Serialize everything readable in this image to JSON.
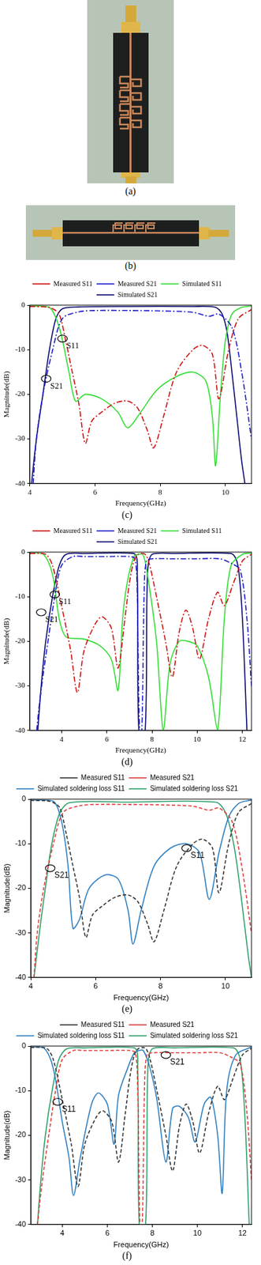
{
  "photos": [
    {
      "caption": "(a)"
    },
    {
      "caption": "(b)"
    }
  ],
  "chart_data": [
    {
      "type": "line",
      "title": "(c)",
      "x_label": "Frequency(GHz)",
      "y_label": "Magnitude(dB)",
      "xlim": [
        4,
        10.8
      ],
      "xticks": [
        4,
        6,
        8,
        10
      ],
      "ylim": [
        -40,
        0
      ],
      "yticks": [
        -40,
        -30,
        -20,
        -10,
        0
      ],
      "grid": false,
      "legend": "top",
      "annotations": [
        {
          "text": "S11",
          "x": 5.0,
          "y": -7.5
        },
        {
          "text": "S21",
          "x": 4.5,
          "y": -16.5
        }
      ],
      "series": [
        {
          "name": "Measured S11",
          "color": "#cc1111",
          "line_style": "dashdot",
          "x": [
            4,
            4.5,
            4.7,
            4.9,
            5.1,
            5.3,
            5.5,
            5.7,
            5.9,
            6.2,
            6.6,
            7.0,
            7.3,
            7.6,
            7.8,
            8.1,
            8.5,
            9.0,
            9.3,
            9.6,
            9.8,
            10.1,
            10.4,
            10.8
          ],
          "values": [
            -0.3,
            -0.4,
            -0.8,
            -2,
            -8,
            -15,
            -22,
            -31,
            -26,
            -24,
            -22,
            -21.5,
            -23,
            -28,
            -32,
            -25,
            -15,
            -10,
            -9,
            -11,
            -21,
            -10,
            -3,
            -1
          ]
        },
        {
          "name": "Measured S21",
          "color": "#1a1acc",
          "line_style": "dashdot",
          "x": [
            4.1,
            4.2,
            4.4,
            4.7,
            5.0,
            5.5,
            6,
            7,
            8,
            9,
            9.5,
            9.8,
            10.2,
            10.5,
            10.8
          ],
          "values": [
            -40,
            -30,
            -20,
            -10,
            -3,
            -1.5,
            -1.2,
            -1.2,
            -1.3,
            -1.6,
            -2.5,
            -2,
            -5,
            -15,
            -30
          ]
        },
        {
          "name": "Simulated S11",
          "color": "#33dd33",
          "line_style": "solid",
          "x": [
            4,
            4.6,
            4.9,
            5.2,
            5.4,
            5.7,
            6.2,
            6.7,
            7.0,
            7.4,
            7.9,
            8.5,
            9.0,
            9.4,
            9.6,
            9.7,
            9.85,
            10.0,
            10.2,
            10.5,
            10.8
          ],
          "values": [
            -0.2,
            -0.5,
            -5,
            -15,
            -21.5,
            -20,
            -21,
            -24,
            -27.5,
            -24,
            -19,
            -16,
            -15,
            -17,
            -25,
            -36,
            -20,
            -8,
            -2,
            -0.5,
            -0.2
          ]
        },
        {
          "name": "Simulated S21",
          "color": "#0a0a70",
          "line_style": "solid",
          "x": [
            4.05,
            4.2,
            4.4,
            4.6,
            4.8,
            5.0,
            5.5,
            7,
            9,
            9.7,
            9.9,
            10.05,
            10.2,
            10.35,
            10.5,
            10.6
          ],
          "values": [
            -40,
            -30,
            -20,
            -10,
            -3,
            -0.8,
            -0.4,
            -0.3,
            -0.3,
            -0.5,
            -2,
            -6,
            -15,
            -25,
            -35,
            -40
          ]
        }
      ]
    },
    {
      "type": "line",
      "title": "(d)",
      "x_label": "Frequency(GHz)",
      "y_label": "Magnitude(dB)",
      "xlim": [
        2.6,
        12.4
      ],
      "xticks": [
        4,
        6,
        8,
        10,
        12
      ],
      "ylim": [
        -40,
        0
      ],
      "yticks": [
        -40,
        -30,
        -20,
        -10,
        0
      ],
      "grid": false,
      "legend": "top",
      "annotations": [
        {
          "text": "S11",
          "x": 3.7,
          "y": -9.5
        },
        {
          "text": "S21",
          "x": 3.1,
          "y": -13.5
        }
      ],
      "series": [
        {
          "name": "Measured S11",
          "color": "#cc1111",
          "line_style": "dashdot",
          "x": [
            2.6,
            3.3,
            3.6,
            4.0,
            4.4,
            4.7,
            5.0,
            5.5,
            5.8,
            6.2,
            6.5,
            6.8,
            7.0,
            7.2,
            7.4,
            7.7,
            7.9,
            8.2,
            8.6,
            8.9,
            9.2,
            9.5,
            9.8,
            10.1,
            10.5,
            10.9,
            11.2,
            11.6,
            12.0,
            12.4
          ],
          "values": [
            -0.3,
            -0.5,
            -3,
            -12,
            -22,
            -31.5,
            -22,
            -16,
            -14.5,
            -17,
            -26,
            -15,
            -7,
            -2,
            -0.5,
            -0.5,
            -3,
            -10,
            -20,
            -28,
            -18,
            -13,
            -17,
            -24,
            -15,
            -9,
            -12,
            -7,
            -2,
            -0.5
          ]
        },
        {
          "name": "Measured S21",
          "color": "#1a1acc",
          "line_style": "dashdot",
          "x": [
            2.9,
            3.0,
            3.2,
            3.4,
            3.7,
            4.0,
            4.5,
            5,
            6,
            7,
            7.25,
            7.35,
            7.45,
            7.55,
            7.65,
            7.75,
            8,
            9,
            10,
            11,
            11.5,
            11.9,
            12.2,
            12.4
          ],
          "values": [
            -40,
            -35,
            -27,
            -20,
            -10,
            -3,
            -1,
            -1,
            -1,
            -1,
            -1.5,
            -10,
            -40,
            -40,
            -10,
            -2,
            -1.5,
            -1.5,
            -1.5,
            -1.5,
            -2.5,
            -4,
            -15,
            -30
          ]
        },
        {
          "name": "Simulated S11",
          "color": "#33dd33",
          "line_style": "solid",
          "x": [
            2.6,
            3.2,
            3.6,
            3.9,
            4.2,
            5.0,
            5.7,
            6.2,
            6.5,
            6.7,
            6.9,
            7.2,
            7.4,
            7.6,
            7.8,
            8.2,
            8.5,
            8.8,
            9.2,
            9.6,
            10.0,
            10.5,
            10.9,
            11.2,
            11.5,
            12.0,
            12.4
          ],
          "values": [
            -0.2,
            -0.5,
            -5,
            -15,
            -19,
            -19.5,
            -21,
            -24,
            -31,
            -15,
            -7,
            -1,
            -0.5,
            -0.5,
            -5,
            -20,
            -40,
            -25,
            -20,
            -20,
            -21,
            -28,
            -40,
            -15,
            -3,
            -0.5,
            -0.2
          ]
        },
        {
          "name": "Simulated S21",
          "color": "#0a0a70",
          "line_style": "solid",
          "x": [
            2.95,
            3.1,
            3.3,
            3.6,
            3.9,
            4.2,
            5,
            7.2,
            7.35,
            7.42,
            7.7,
            7.8,
            8.0,
            9,
            11.5,
            11.8,
            12.0,
            12.2
          ],
          "values": [
            -40,
            -30,
            -20,
            -10,
            -3,
            -0.5,
            -0.3,
            -0.3,
            -5,
            -40,
            -40,
            -5,
            -0.5,
            -0.3,
            -0.3,
            -3,
            -15,
            -40
          ]
        }
      ]
    },
    {
      "type": "line",
      "title": "(e)",
      "x_label": "Frequency(GHz)",
      "y_label": "Magnitude(dB)",
      "xlim": [
        4,
        10.8
      ],
      "xticks": [
        4,
        6,
        8,
        10
      ],
      "ylim": [
        -40,
        0
      ],
      "yticks": [
        -40,
        -30,
        -20,
        -10,
        0
      ],
      "grid": false,
      "legend": "top",
      "annotations": [
        {
          "text": "S21",
          "x": 4.6,
          "y": -15.5
        },
        {
          "text": "S11",
          "x": 8.8,
          "y": -11
        }
      ],
      "series": [
        {
          "name": "Measured S11",
          "color": "#333333",
          "line_style": "dashed",
          "x": [
            4,
            4.5,
            4.7,
            4.9,
            5.1,
            5.3,
            5.5,
            5.7,
            5.9,
            6.2,
            6.6,
            7.0,
            7.3,
            7.6,
            7.8,
            8.1,
            8.5,
            9.0,
            9.3,
            9.6,
            9.8,
            10.1,
            10.4,
            10.8
          ],
          "values": [
            -0.3,
            -0.4,
            -0.8,
            -2,
            -8,
            -15,
            -22,
            -31,
            -26,
            -24,
            -22,
            -21.5,
            -23,
            -28,
            -32,
            -25,
            -15,
            -10,
            -9,
            -11,
            -21,
            -10,
            -3,
            -1
          ]
        },
        {
          "name": "Measured S21",
          "color": "#e03c3c",
          "line_style": "dashed",
          "x": [
            4.1,
            4.2,
            4.4,
            4.7,
            5.0,
            5.5,
            6,
            7,
            8,
            9,
            9.5,
            9.8,
            10.2,
            10.5,
            10.8
          ],
          "values": [
            -40,
            -30,
            -20,
            -10,
            -3,
            -1.5,
            -1.2,
            -1.2,
            -1.3,
            -1.6,
            -2.5,
            -2,
            -5,
            -15,
            -30
          ]
        },
        {
          "name": "Simulated soldering loss S11",
          "color": "#2f7fc1",
          "line_style": "solid",
          "x": [
            4,
            4.7,
            4.95,
            5.15,
            5.3,
            5.5,
            5.8,
            6.3,
            6.7,
            7.0,
            7.15,
            7.4,
            7.8,
            8.3,
            8.8,
            9.2,
            9.5,
            9.8,
            10.1,
            10.4,
            10.8
          ],
          "values": [
            -0.2,
            -0.5,
            -5,
            -15,
            -29,
            -27,
            -20,
            -17,
            -18,
            -25,
            -32.5,
            -25,
            -15,
            -11,
            -10,
            -12,
            -22.5,
            -12,
            -4,
            -1,
            -0.2
          ]
        },
        {
          "name": "Simulated soldering loss S21",
          "color": "#2ea06a",
          "line_style": "solid",
          "x": [
            4.1,
            4.3,
            4.45,
            4.65,
            4.9,
            5.2,
            7,
            9.7,
            10.0,
            10.25,
            10.45,
            10.7,
            10.8
          ],
          "values": [
            -40,
            -28,
            -20,
            -10,
            -3,
            -0.8,
            -0.7,
            -0.7,
            -3,
            -10,
            -20,
            -35,
            -40
          ]
        }
      ]
    },
    {
      "type": "line",
      "title": "(f)",
      "x_label": "Frequency(GHz)",
      "y_label": "Magnitude(dB)",
      "xlim": [
        2.6,
        12.4
      ],
      "xticks": [
        4,
        6,
        8,
        10,
        12
      ],
      "ylim": [
        -40,
        0
      ],
      "yticks": [
        -40,
        -30,
        -20,
        -10,
        0
      ],
      "grid": false,
      "legend": "top",
      "annotations": [
        {
          "text": "S11",
          "x": 3.8,
          "y": -12.5
        },
        {
          "text": "S21",
          "x": 8.6,
          "y": -2
        }
      ],
      "series": [
        {
          "name": "Measured S11",
          "color": "#333333",
          "line_style": "dashed",
          "x": [
            2.6,
            3.3,
            3.6,
            4.0,
            4.4,
            4.7,
            5.0,
            5.5,
            5.8,
            6.2,
            6.5,
            6.8,
            7.0,
            7.2,
            7.4,
            7.7,
            7.9,
            8.2,
            8.6,
            8.9,
            9.2,
            9.5,
            9.8,
            10.1,
            10.5,
            10.9,
            11.2,
            11.6,
            12.0,
            12.4
          ],
          "values": [
            -0.3,
            -0.5,
            -3,
            -12,
            -22,
            -31.5,
            -22,
            -16,
            -14.5,
            -17,
            -26,
            -15,
            -7,
            -2,
            -0.5,
            -0.5,
            -3,
            -10,
            -20,
            -28,
            -18,
            -13,
            -17,
            -24,
            -15,
            -9,
            -12,
            -7,
            -2,
            -0.5
          ]
        },
        {
          "name": "Measured S21",
          "color": "#e03c3c",
          "line_style": "dashed",
          "x": [
            2.9,
            3.0,
            3.2,
            3.4,
            3.7,
            4.0,
            4.5,
            5,
            6,
            7,
            7.25,
            7.35,
            7.45,
            7.55,
            7.65,
            7.75,
            8,
            9,
            10,
            11,
            11.5,
            11.9,
            12.2,
            12.4
          ],
          "values": [
            -40,
            -35,
            -27,
            -20,
            -10,
            -3,
            -1,
            -1,
            -1,
            -1,
            -1.5,
            -10,
            -40,
            -40,
            -10,
            -2,
            -1.5,
            -1.5,
            -1.5,
            -1.5,
            -2.5,
            -4,
            -15,
            -30
          ]
        },
        {
          "name": "Simulated soldering loss S11",
          "color": "#2f7fc1",
          "line_style": "solid",
          "x": [
            2.6,
            3.2,
            3.6,
            4.0,
            4.3,
            4.5,
            4.8,
            5.3,
            5.6,
            6.0,
            6.3,
            6.5,
            6.9,
            7.2,
            7.4,
            7.6,
            7.9,
            8.2,
            8.6,
            8.9,
            9.2,
            9.6,
            9.9,
            10.3,
            10.6,
            10.9,
            11.1,
            11.3,
            11.7,
            12.4
          ],
          "values": [
            -0.2,
            -0.5,
            -5,
            -17,
            -25,
            -33.5,
            -25,
            -13,
            -10.5,
            -13,
            -22,
            -11,
            -5,
            -1.5,
            -1,
            -1,
            -5,
            -12,
            -26,
            -14,
            -13.5,
            -16,
            -21.5,
            -13,
            -11.5,
            -20,
            -33,
            -10,
            -2,
            -0.2
          ]
        },
        {
          "name": "Simulated soldering loss S21",
          "color": "#2ea06a",
          "line_style": "solid",
          "x": [
            2.9,
            3.05,
            3.25,
            3.55,
            3.85,
            4.2,
            5,
            7.2,
            7.35,
            7.42,
            7.7,
            7.8,
            8.0,
            9,
            11.6,
            11.9,
            12.1,
            12.3
          ],
          "values": [
            -40,
            -30,
            -20,
            -10,
            -3,
            -0.6,
            -0.4,
            -0.4,
            -5,
            -40,
            -40,
            -5,
            -0.6,
            -0.4,
            -0.4,
            -3,
            -15,
            -40
          ]
        }
      ]
    }
  ]
}
